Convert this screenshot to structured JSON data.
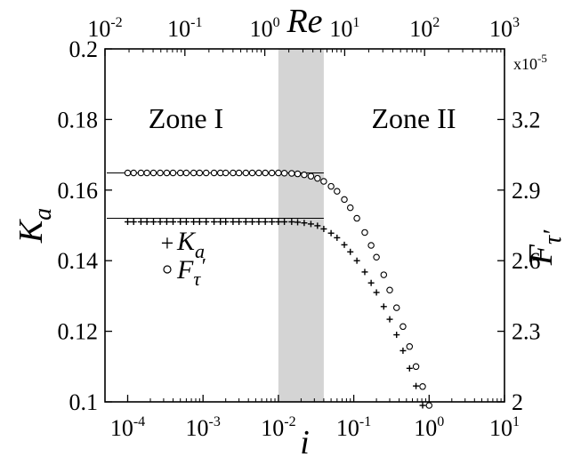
{
  "chart_data": {
    "type": "scatter",
    "title": "",
    "xlabel": "i",
    "ylabel": "K_a",
    "x_top_label": "Re",
    "y_right_label": "F_τ′",
    "x_scale": "log",
    "xlim": [
      5e-05,
      10
    ],
    "ylim": [
      0.1,
      0.2
    ],
    "x_top_lim": [
      0.01,
      1000
    ],
    "y_right_lim": [
      2.0,
      3.5
    ],
    "y_right_multiplier": "x10-5",
    "x_ticks": [
      {
        "base": "10",
        "exp": "-4",
        "value": 0.0001
      },
      {
        "base": "10",
        "exp": "-3",
        "value": 0.001
      },
      {
        "base": "10",
        "exp": "-2",
        "value": 0.01
      },
      {
        "base": "10",
        "exp": "-1",
        "value": 0.1
      },
      {
        "base": "10",
        "exp": "0",
        "value": 1
      },
      {
        "base": "10",
        "exp": "1",
        "value": 10
      }
    ],
    "x_top_ticks": [
      {
        "base": "10",
        "exp": "-2",
        "value": 0.01
      },
      {
        "base": "10",
        "exp": "-1",
        "value": 0.1
      },
      {
        "base": "10",
        "exp": "0",
        "value": 1
      },
      {
        "base": "10",
        "exp": "1",
        "value": 10
      },
      {
        "base": "10",
        "exp": "2",
        "value": 100
      },
      {
        "base": "10",
        "exp": "3",
        "value": 1000
      }
    ],
    "y_ticks": [
      "0.1",
      "0.12",
      "0.14",
      "0.16",
      "0.18",
      "0.2"
    ],
    "y_right_ticks": [
      "2",
      "2.3",
      "2.6",
      "2.9",
      "3.2"
    ],
    "shaded_region": {
      "x": [
        0.01,
        0.04
      ],
      "color": "#d4d4d4"
    },
    "zones": [
      "Zone I",
      "Zone II"
    ],
    "reference_lines": [
      {
        "series": "K_a",
        "y": 0.152,
        "x_end": 0.04
      },
      {
        "series": "F_τ′",
        "y": 2.973,
        "x_end": 0.04
      }
    ],
    "series": [
      {
        "name": "K_a",
        "marker": "plus",
        "axis": "left",
        "x": [
          0.0001,
          0.00012,
          0.00015,
          0.00018,
          0.00022,
          0.00027,
          0.00033,
          0.0004,
          0.0005,
          0.0006,
          0.00075,
          0.0009,
          0.0011,
          0.0014,
          0.0017,
          0.002,
          0.0025,
          0.003,
          0.0037,
          0.0045,
          0.0055,
          0.0067,
          0.0082,
          0.01,
          0.012,
          0.015,
          0.018,
          0.022,
          0.027,
          0.033,
          0.04,
          0.05,
          0.06,
          0.075,
          0.09,
          0.11,
          0.14,
          0.17,
          0.2,
          0.25,
          0.3,
          0.37,
          0.45,
          0.55,
          0.67,
          0.82
        ],
        "values": [
          0.151,
          0.151,
          0.151,
          0.151,
          0.151,
          0.151,
          0.151,
          0.151,
          0.151,
          0.151,
          0.151,
          0.151,
          0.151,
          0.151,
          0.151,
          0.151,
          0.151,
          0.151,
          0.151,
          0.151,
          0.151,
          0.151,
          0.151,
          0.151,
          0.151,
          0.151,
          0.1509,
          0.1507,
          0.1504,
          0.1499,
          0.149,
          0.1478,
          0.1465,
          0.1445,
          0.1425,
          0.14,
          0.1368,
          0.1337,
          0.131,
          0.127,
          0.1234,
          0.119,
          0.1145,
          0.1095,
          0.1045,
          0.099
        ]
      },
      {
        "name": "F_τ′",
        "marker": "circle",
        "axis": "right",
        "x": [
          0.0001,
          0.00012,
          0.00015,
          0.00018,
          0.00022,
          0.00027,
          0.00033,
          0.0004,
          0.0005,
          0.0006,
          0.00075,
          0.0009,
          0.0011,
          0.0014,
          0.0017,
          0.002,
          0.0025,
          0.003,
          0.0037,
          0.0045,
          0.0055,
          0.0067,
          0.0082,
          0.01,
          0.012,
          0.015,
          0.018,
          0.022,
          0.027,
          0.033,
          0.04,
          0.05,
          0.06,
          0.075,
          0.09,
          0.11,
          0.14,
          0.17,
          0.2,
          0.25,
          0.3,
          0.37,
          0.45,
          0.55,
          0.67,
          0.82,
          1.0
        ],
        "values": [
          2.973,
          2.973,
          2.973,
          2.973,
          2.973,
          2.973,
          2.973,
          2.973,
          2.973,
          2.973,
          2.973,
          2.973,
          2.973,
          2.973,
          2.973,
          2.973,
          2.973,
          2.973,
          2.973,
          2.973,
          2.973,
          2.973,
          2.973,
          2.973,
          2.972,
          2.971,
          2.969,
          2.965,
          2.959,
          2.95,
          2.937,
          2.916,
          2.895,
          2.86,
          2.825,
          2.78,
          2.72,
          2.665,
          2.615,
          2.54,
          2.475,
          2.4,
          2.32,
          2.235,
          2.15,
          2.065,
          1.985
        ]
      }
    ],
    "legend": {
      "placement": "left-center",
      "entries": [
        {
          "symbol": "+",
          "label": "K",
          "sub": "a"
        },
        {
          "symbol": "○",
          "label": "F",
          "sub": "τ",
          "prime": "′"
        }
      ]
    },
    "grid": false
  }
}
